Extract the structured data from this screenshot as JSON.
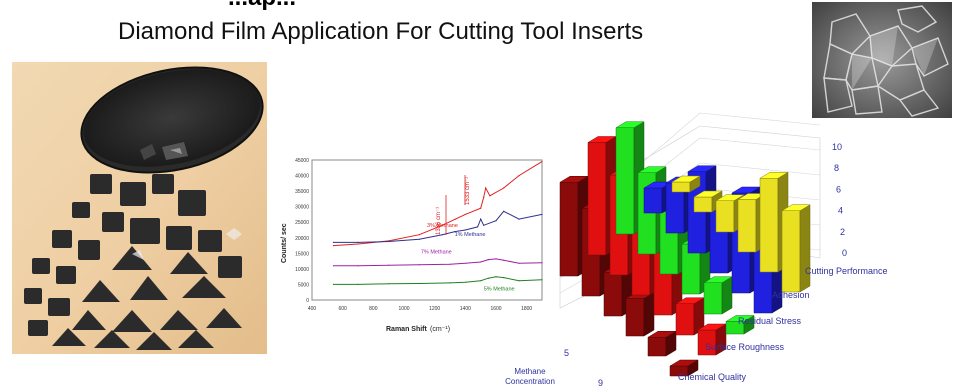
{
  "header": {
    "title_fragment": "...ap...",
    "subtitle": "Diamond Film Application For Cutting Tool Inserts"
  },
  "raman_chart": {
    "chart_data": {
      "type": "line",
      "xlabel": "Raman Shift",
      "xlabel_unit": "(cm⁻¹)",
      "ylabel": "Counts/ sec",
      "xlim": [
        400,
        1900
      ],
      "ylim": [
        0,
        45000
      ],
      "x_ticks": [
        400,
        600,
        800,
        1000,
        1200,
        1400,
        1600,
        1800
      ],
      "y_ticks": [
        0,
        5000,
        10000,
        15000,
        20000,
        25000,
        30000,
        35000,
        40000,
        45000
      ],
      "annotations": [
        "1336 cm⁻¹",
        "1533 cm⁻¹"
      ],
      "series": [
        {
          "name": "3% Methane",
          "color": "#e02020",
          "x": [
            540,
            700,
            900,
            1100,
            1250,
            1336,
            1400,
            1500,
            1520,
            1533,
            1560,
            1650,
            1750,
            1900
          ],
          "y": [
            17500,
            18000,
            19000,
            21000,
            24000,
            26000,
            27500,
            29500,
            33000,
            36000,
            33500,
            36000,
            40000,
            44500
          ]
        },
        {
          "name": "1% Methane",
          "color": "#303090",
          "x": [
            540,
            700,
            900,
            1100,
            1250,
            1332,
            1400,
            1480,
            1500,
            1520,
            1600,
            1650,
            1750,
            1900
          ],
          "y": [
            18500,
            18500,
            18800,
            19500,
            21000,
            22000,
            22500,
            23500,
            26000,
            24000,
            25500,
            28500,
            26000,
            27500
          ]
        },
        {
          "name": "7% Methane",
          "color": "#a020a0",
          "x": [
            540,
            700,
            900,
            1100,
            1300,
            1400,
            1500,
            1550,
            1600,
            1650,
            1750,
            1900
          ],
          "y": [
            11000,
            11000,
            11200,
            11300,
            11500,
            11800,
            12200,
            13000,
            13200,
            12800,
            11800,
            12000
          ]
        },
        {
          "name": "5% Methane",
          "color": "#208020",
          "x": [
            540,
            700,
            900,
            1100,
            1300,
            1400,
            1500,
            1550,
            1600,
            1650,
            1750,
            1900
          ],
          "y": [
            5000,
            5000,
            5200,
            5300,
            5500,
            5700,
            6200,
            7000,
            7500,
            7200,
            6200,
            6500
          ]
        }
      ]
    }
  },
  "bar3d_chart": {
    "chart_data": {
      "type": "bar",
      "z_ticks": [
        "0",
        "2",
        "4",
        "6",
        "8",
        "10"
      ],
      "zlim": [
        0,
        10
      ],
      "row_axis_labels": [
        "Cutting Performance",
        "Adhesion",
        "Residual Stress",
        "Surface Roughness",
        "Chemical Quality"
      ],
      "column_axis_title": "Methane Concentration",
      "column_tick_labels": [
        "5",
        "9"
      ],
      "series": [
        {
          "row": "Cutting Performance",
          "color": "#e8e020",
          "values": [
            0.8,
            1.2,
            2.5,
            4.2,
            7.5,
            6.5
          ]
        },
        {
          "row": "Adhesion",
          "color": "#2020e0",
          "values": [
            2.0,
            4.0,
            6.5,
            5.0,
            8.0,
            8.5
          ]
        },
        {
          "row": "Residual Stress",
          "color": "#20e020",
          "values": [
            8.5,
            6.5,
            5.0,
            4.0,
            2.5,
            1.0
          ]
        },
        {
          "row": "Surface Roughness",
          "color": "#e01010",
          "values": [
            9.0,
            8.0,
            5.5,
            5.0,
            2.5,
            2.0
          ]
        },
        {
          "row": "Chemical Quality",
          "color": "#8b0a0a",
          "values": [
            7.5,
            7.0,
            3.5,
            3.0,
            1.5,
            0.8
          ]
        }
      ]
    }
  }
}
